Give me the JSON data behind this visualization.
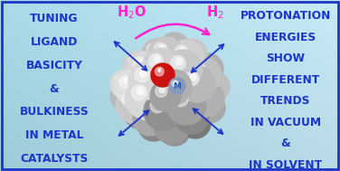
{
  "bg_color_left": "#a8dce8",
  "bg_color_right": "#c0eaf8",
  "left_text_lines": [
    "TUNING",
    "LIGAND",
    "BASICITY",
    "&",
    "BULKINESS",
    "IN METAL",
    "CATALYSTS"
  ],
  "right_text_lines": [
    "PROTONATION",
    "ENERGIES",
    "SHOW",
    "DIFFERENT",
    "TRENDS",
    "IN VACUUM",
    "&",
    "IN SOLVENT"
  ],
  "left_text_color": "#1a35c8",
  "right_text_color": "#1a35c8",
  "pink_label_color": "#ff22cc",
  "arrow_color": "#1a35c8",
  "pink_arrow_color": "#ff22cc",
  "m_label": "M",
  "m_label_color": "#2255dd",
  "border_color": "#1a35c8",
  "border_width": 2.0,
  "spheres": [
    [
      -48,
      -5,
      18,
      "#b8b8b8",
      2
    ],
    [
      -35,
      -25,
      16,
      "#a0a0a0",
      2
    ],
    [
      -18,
      -38,
      17,
      "#888888",
      2
    ],
    [
      5,
      -42,
      18,
      "#909090",
      2
    ],
    [
      28,
      -35,
      17,
      "#787878",
      2
    ],
    [
      44,
      -18,
      17,
      "#a8a8a8",
      2
    ],
    [
      50,
      5,
      16,
      "#c0c0c0",
      2
    ],
    [
      42,
      25,
      17,
      "#b0b0b0",
      2
    ],
    [
      25,
      42,
      16,
      "#c8c8c8",
      2
    ],
    [
      5,
      48,
      17,
      "#b8b8b8",
      2
    ],
    [
      -15,
      42,
      16,
      "#c0c0c0",
      2
    ],
    [
      -35,
      28,
      17,
      "#d0d0d0",
      2
    ],
    [
      -50,
      8,
      16,
      "#d8d8d8",
      2
    ],
    [
      -40,
      -15,
      20,
      "#c8c8c8",
      3
    ],
    [
      -22,
      -30,
      19,
      "#a8a8a8",
      3
    ],
    [
      2,
      -38,
      20,
      "#989898",
      3
    ],
    [
      24,
      -28,
      19,
      "#888888",
      3
    ],
    [
      40,
      -8,
      20,
      "#b0b0b0",
      3
    ],
    [
      38,
      18,
      19,
      "#c0c0c0",
      3
    ],
    [
      18,
      38,
      19,
      "#d0d0d0",
      3
    ],
    [
      -5,
      40,
      20,
      "#c8c8c8",
      3
    ],
    [
      -28,
      25,
      19,
      "#d8d8d8",
      3
    ],
    [
      -44,
      5,
      18,
      "#e0e0e0",
      3
    ],
    [
      -28,
      -8,
      22,
      "#d8d8d8",
      4
    ],
    [
      -8,
      -22,
      21,
      "#909090",
      4
    ],
    [
      18,
      -15,
      22,
      "#a0a0a0",
      4
    ],
    [
      30,
      8,
      20,
      "#b8b8b8",
      4
    ],
    [
      15,
      25,
      21,
      "#c8c8c8",
      4
    ],
    [
      -10,
      28,
      20,
      "#d0d0d0",
      4
    ],
    [
      -25,
      12,
      21,
      "#d8d8d8",
      4
    ],
    [
      5,
      5,
      19,
      "#b0b0b0",
      5
    ],
    [
      -5,
      -5,
      17,
      "#a0a0a0",
      5
    ]
  ],
  "red_sphere": [
    -8,
    18,
    13,
    "#cc1111",
    6
  ],
  "m_sphere": [
    8,
    6,
    9,
    "#8899bb",
    7
  ]
}
